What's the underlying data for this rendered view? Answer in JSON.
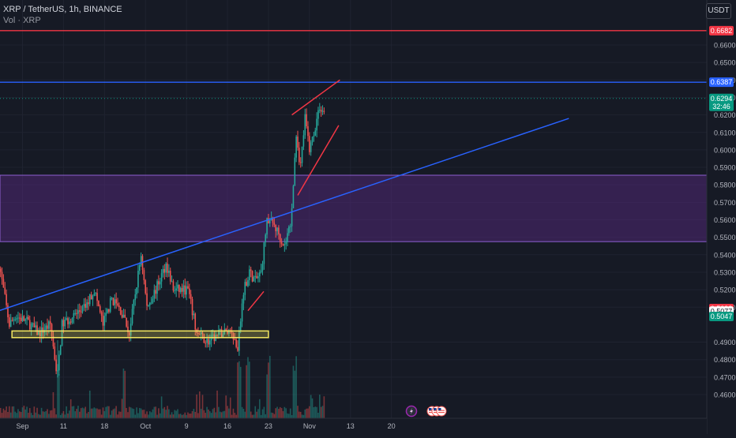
{
  "header": {
    "symbol": "XRP / TetherUS, 1h, BINANCE",
    "indicator": "Vol · XRP",
    "currency_button": "USDT"
  },
  "colors": {
    "background": "#161a25",
    "grid": "#1f2330",
    "bull": "#26a69a",
    "bear": "#ef5350",
    "support_box": "#f5e960",
    "zone": "#5b2a86",
    "trendline": "#2962ff",
    "red_level": "#f23645",
    "blue_level": "#2962ff",
    "pattern_lines": "#f23645"
  },
  "chart_data": {
    "type": "candlestick",
    "title": "XRP / TetherUS, 1h, BINANCE",
    "ylim": [
      0.454,
      0.6735
    ],
    "y_ticks": [
      "0.6600",
      "0.6500",
      "0.6400",
      "0.6300",
      "0.6200",
      "0.6100",
      "0.6000",
      "0.5900",
      "0.5800",
      "0.5700",
      "0.5600",
      "0.5500",
      "0.5400",
      "0.5300",
      "0.5200",
      "0.5100",
      "0.4900",
      "0.4800",
      "0.4700",
      "0.4600"
    ],
    "x_ticks": [
      "Sep",
      "11",
      "18",
      "Oct",
      "9",
      "16",
      "23",
      "Nov",
      "13",
      "20"
    ],
    "x_tick_days": [
      4,
      11,
      18,
      25,
      32,
      39,
      46,
      53,
      60,
      67
    ],
    "price_path": [
      [
        0.0,
        0.54
      ],
      [
        1.0,
        0.52
      ],
      [
        2.0,
        0.5
      ],
      [
        3.0,
        0.505
      ],
      [
        5.0,
        0.502
      ],
      [
        7.0,
        0.495
      ],
      [
        9.0,
        0.5
      ],
      [
        10.2,
        0.47
      ],
      [
        11.0,
        0.5
      ],
      [
        13.0,
        0.505
      ],
      [
        15.0,
        0.51
      ],
      [
        16.5,
        0.52
      ],
      [
        18.0,
        0.5
      ],
      [
        19.5,
        0.515
      ],
      [
        21.0,
        0.508
      ],
      [
        22.5,
        0.495
      ],
      [
        24.5,
        0.54
      ],
      [
        25.5,
        0.51
      ],
      [
        27.0,
        0.52
      ],
      [
        28.8,
        0.535
      ],
      [
        30.0,
        0.52
      ],
      [
        32.5,
        0.52
      ],
      [
        34.0,
        0.495
      ],
      [
        36.0,
        0.49
      ],
      [
        38.0,
        0.495
      ],
      [
        40.0,
        0.497
      ],
      [
        41.0,
        0.485
      ],
      [
        42.0,
        0.52
      ],
      [
        43.0,
        0.53
      ],
      [
        44.0,
        0.525
      ],
      [
        45.0,
        0.53
      ],
      [
        46.0,
        0.56
      ],
      [
        47.0,
        0.558
      ],
      [
        48.0,
        0.552
      ],
      [
        49.0,
        0.545
      ],
      [
        50.0,
        0.558
      ],
      [
        50.5,
        0.58
      ],
      [
        51.0,
        0.61
      ],
      [
        51.7,
        0.59
      ],
      [
        52.5,
        0.618
      ],
      [
        53.3,
        0.6
      ],
      [
        54.0,
        0.61
      ],
      [
        55.0,
        0.625
      ],
      [
        55.5,
        0.622
      ]
    ],
    "volume_spikes_at_days": [
      10.2,
      21.4,
      41.0,
      42.5,
      46.0,
      50.5
    ],
    "support_box": {
      "price_low": 0.4935,
      "price_high": 0.4955,
      "day_start": 2.2,
      "day_end": 46.0
    },
    "zone": {
      "price_low": 0.5475,
      "price_high": 0.5855
    },
    "trendline": {
      "p1": [
        0.0,
        0.508
      ],
      "p2": [
        97.3,
        0.618
      ]
    },
    "horizontal_levels": [
      {
        "price": 0.6682,
        "color": "#f23645"
      },
      {
        "price": 0.6387,
        "color": "#2962ff"
      },
      {
        "price": 0.6294,
        "color": "#089981",
        "dotted": true
      }
    ],
    "pattern_lines": [
      {
        "p1": [
          42.5,
          0.508
        ],
        "p2": [
          45.2,
          0.519
        ]
      },
      {
        "p1": [
          50.0,
          0.62
        ],
        "p2": [
          58.2,
          0.64
        ]
      },
      {
        "p1": [
          51.0,
          0.574
        ],
        "p2": [
          58.0,
          0.614
        ]
      }
    ],
    "price_labels": [
      {
        "text": "0.6682",
        "price": 0.6682,
        "bg": "#f23645",
        "fg": "#ffffff"
      },
      {
        "text": "0.6387",
        "price": 0.6387,
        "bg": "#2962ff",
        "fg": "#ffffff"
      },
      {
        "text": "0.6294",
        "price": 0.6294,
        "bg": "#089981",
        "fg": "#ffffff",
        "sub": "32:46"
      },
      {
        "text": "0.5092",
        "price": 0.5092,
        "bg": "#f23645",
        "fg": "#ffffff"
      },
      {
        "text": "0.5077",
        "price": 0.5077,
        "bg": "#ffffff",
        "fg": "#131722"
      },
      {
        "text": "0.5047",
        "price": 0.5047,
        "bg": "#089981",
        "fg": "#ffffff"
      }
    ],
    "events_icons": [
      "lightning",
      "us-flag",
      "us-flag",
      "us-flag"
    ]
  }
}
